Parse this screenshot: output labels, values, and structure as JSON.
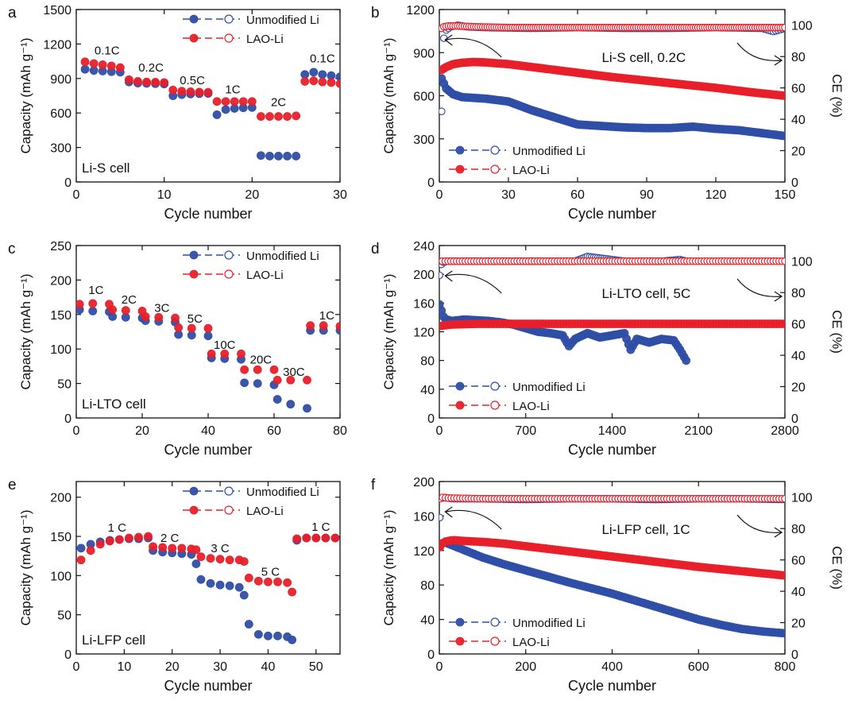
{
  "legend": {
    "unmodified": "Unmodified Li",
    "lao": "LAO-Li"
  },
  "colors": {
    "unmodified": "#2f4ea6",
    "lao": "#e8202a",
    "axis": "#111111"
  },
  "chart_data": [
    {
      "panel": "a",
      "type": "scatter",
      "cell_label": "Li-S cell",
      "xlabel": "Cycle number",
      "ylabel": "Capacity (mAh g⁻¹)",
      "xlim": [
        0,
        30
      ],
      "ylim": [
        0,
        1500
      ],
      "xticks": [
        0,
        10,
        20,
        30
      ],
      "yticks": [
        0,
        300,
        600,
        900,
        1200,
        1500
      ],
      "rate_labels": [
        {
          "text": "0.1C",
          "x": 3.5,
          "y": 1110
        },
        {
          "text": "0.2C",
          "x": 8.5,
          "y": 960
        },
        {
          "text": "0.5C",
          "x": 13.2,
          "y": 850
        },
        {
          "text": "1C",
          "x": 17.8,
          "y": 770
        },
        {
          "text": "2C",
          "x": 23,
          "y": 660
        },
        {
          "text": "0.1C",
          "x": 28,
          "y": 1040
        }
      ],
      "series": [
        {
          "name": "Unmodified Li",
          "x": [
            1,
            2,
            3,
            4,
            5,
            6,
            7,
            8,
            9,
            10,
            11,
            12,
            13,
            14,
            15,
            16,
            17,
            18,
            19,
            20,
            21,
            22,
            23,
            24,
            25,
            26,
            27,
            28,
            29,
            30
          ],
          "values": [
            980,
            970,
            965,
            960,
            955,
            870,
            860,
            858,
            855,
            852,
            750,
            760,
            765,
            768,
            770,
            585,
            630,
            640,
            645,
            648,
            230,
            225,
            225,
            225,
            225,
            935,
            955,
            935,
            925,
            915
          ]
        },
        {
          "name": "LAO-Li",
          "x": [
            1,
            2,
            3,
            4,
            5,
            6,
            7,
            8,
            9,
            10,
            11,
            12,
            13,
            14,
            15,
            16,
            17,
            18,
            19,
            20,
            21,
            22,
            23,
            24,
            25,
            26,
            27,
            28,
            29,
            30
          ],
          "values": [
            1045,
            1030,
            1020,
            1010,
            995,
            890,
            875,
            870,
            868,
            865,
            800,
            790,
            785,
            782,
            780,
            700,
            700,
            700,
            700,
            700,
            570,
            570,
            570,
            570,
            575,
            875,
            880,
            870,
            865,
            855
          ]
        }
      ]
    },
    {
      "panel": "b",
      "type": "scatter",
      "cell_label": "Li-S cell, 0.2C",
      "xlabel": "Cycle number",
      "ylabel": "Capacity (mAh g⁻¹)",
      "y2label": "CE (%)",
      "xlim": [
        0,
        150
      ],
      "ylim": [
        0,
        1200
      ],
      "y2lim": [
        0,
        110
      ],
      "xticks": [
        0,
        30,
        60,
        90,
        120,
        150
      ],
      "yticks": [
        0,
        300,
        600,
        900,
        1200
      ],
      "y2ticks": [
        0,
        20,
        40,
        60,
        80,
        100
      ],
      "series": [
        {
          "name": "Unmodified Li",
          "axis": "left",
          "x": [
            1,
            3,
            6,
            10,
            20,
            30,
            40,
            50,
            60,
            70,
            80,
            90,
            100,
            110,
            120,
            130,
            140,
            150
          ],
          "values": [
            720,
            650,
            610,
            590,
            580,
            560,
            500,
            450,
            400,
            390,
            380,
            375,
            375,
            385,
            370,
            360,
            340,
            320
          ]
        },
        {
          "name": "LAO-Li",
          "axis": "left",
          "x": [
            1,
            3,
            6,
            10,
            15,
            20,
            30,
            45,
            60,
            75,
            90,
            105,
            120,
            135,
            150
          ],
          "values": [
            780,
            800,
            820,
            830,
            835,
            832,
            820,
            790,
            760,
            730,
            705,
            680,
            655,
            625,
            600
          ]
        },
        {
          "name": "Unmodified Li CE",
          "axis": "right",
          "x": [
            1,
            2,
            3,
            5,
            8,
            12,
            20,
            40,
            60,
            80,
            100,
            120,
            140,
            145,
            150
          ],
          "values": [
            45,
            92,
            97,
            99,
            100,
            99,
            98.5,
            98,
            98.5,
            98,
            98,
            98.5,
            98,
            96,
            98
          ]
        },
        {
          "name": "LAO-Li CE",
          "axis": "right",
          "x": [
            1,
            2,
            4,
            8,
            15,
            30,
            60,
            90,
            120,
            150
          ],
          "values": [
            98,
            99,
            99.5,
            99.5,
            99,
            98.5,
            98.5,
            98.5,
            98.5,
            98.5
          ]
        }
      ]
    },
    {
      "panel": "c",
      "type": "scatter",
      "cell_label": "Li-LTO cell",
      "xlabel": "Cycle number",
      "ylabel": "Capacity (mAh g⁻¹)",
      "xlim": [
        0,
        80
      ],
      "ylim": [
        0,
        250
      ],
      "xticks": [
        0,
        20,
        40,
        60,
        80
      ],
      "yticks": [
        0,
        50,
        100,
        150,
        200,
        250
      ],
      "rate_labels": [
        {
          "text": "1C",
          "x": 6,
          "y": 180
        },
        {
          "text": "2C",
          "x": 16,
          "y": 166
        },
        {
          "text": "3C",
          "x": 26,
          "y": 154
        },
        {
          "text": "5C",
          "x": 36,
          "y": 138
        },
        {
          "text": "10C",
          "x": 45,
          "y": 100
        },
        {
          "text": "20C",
          "x": 56,
          "y": 79
        },
        {
          "text": "30C",
          "x": 66,
          "y": 61
        },
        {
          "text": "1C",
          "x": 76,
          "y": 143
        }
      ],
      "series": [
        {
          "name": "Unmodified Li",
          "x": [
            1,
            5,
            10,
            11,
            15,
            20,
            21,
            25,
            30,
            31,
            35,
            40,
            41,
            45,
            50,
            51,
            55,
            60,
            61,
            65,
            70,
            71,
            75,
            80
          ],
          "values": [
            157,
            155,
            154,
            147,
            146,
            145,
            141,
            140,
            139,
            121,
            120,
            119,
            87,
            86,
            85,
            51,
            50,
            48,
            27,
            20,
            14,
            127,
            127,
            127
          ]
        },
        {
          "name": "LAO-Li",
          "x": [
            1,
            5,
            10,
            11,
            15,
            20,
            21,
            25,
            30,
            31,
            35,
            40,
            41,
            45,
            50,
            51,
            55,
            60,
            61,
            65,
            70,
            71,
            75,
            80
          ],
          "values": [
            165,
            166,
            165,
            157,
            156,
            155,
            147,
            146,
            145,
            131,
            130,
            130,
            93,
            93,
            93,
            70,
            70,
            70,
            55,
            55,
            55,
            134,
            134,
            133
          ]
        }
      ]
    },
    {
      "panel": "d",
      "type": "scatter",
      "cell_label": "Li-LTO cell, 5C",
      "xlabel": "Cycle number",
      "ylabel": "Capacity (mAh g⁻¹)",
      "y2label": "CE (%)",
      "xlim": [
        0,
        2800
      ],
      "ylim": [
        0,
        240
      ],
      "y2lim": [
        0,
        110
      ],
      "xticks": [
        0,
        700,
        1400,
        2100,
        2800
      ],
      "yticks": [
        0,
        40,
        80,
        120,
        160,
        200,
        240
      ],
      "y2ticks": [
        0,
        20,
        40,
        60,
        80,
        100
      ],
      "series": [
        {
          "name": "Unmodified Li",
          "axis": "left",
          "x": [
            1,
            40,
            100,
            200,
            300,
            400,
            500,
            600,
            700,
            800,
            900,
            1000,
            1050,
            1100,
            1200,
            1300,
            1400,
            1500,
            1550,
            1600,
            1700,
            1800,
            1900,
            1950,
            2000
          ],
          "values": [
            158,
            138,
            135,
            137,
            136,
            135,
            133,
            130,
            125,
            120,
            118,
            115,
            100,
            110,
            118,
            112,
            115,
            118,
            95,
            110,
            105,
            110,
            108,
            95,
            80
          ]
        },
        {
          "name": "LAO-Li",
          "axis": "left",
          "x": [
            1,
            100,
            300,
            600,
            1000,
            1400,
            1800,
            2200,
            2600,
            2800
          ],
          "values": [
            128,
            130,
            131,
            131,
            131,
            131,
            131,
            131,
            131,
            131
          ]
        },
        {
          "name": "Unmodified Li CE",
          "axis": "right",
          "x": [
            1,
            20,
            60,
            200,
            500,
            800,
            1100,
            1200,
            1500,
            1800,
            1950,
            2000
          ],
          "values": [
            91,
            99,
            100,
            100,
            100,
            100,
            100,
            103,
            100,
            100,
            101,
            100
          ]
        },
        {
          "name": "LAO-Li CE",
          "axis": "right",
          "x": [
            1,
            200,
            500,
            1000,
            1500,
            2000,
            2500,
            2800
          ],
          "values": [
            100,
            100,
            100,
            100,
            100,
            100,
            100,
            100
          ]
        }
      ]
    },
    {
      "panel": "e",
      "type": "scatter",
      "cell_label": "Li-LFP cell",
      "xlabel": "Cycle number",
      "ylabel": "Capacity (mAh g⁻¹)",
      "xlim": [
        0,
        55
      ],
      "ylim": [
        0,
        220
      ],
      "xticks": [
        0,
        10,
        20,
        30,
        40,
        50
      ],
      "yticks": [
        0,
        50,
        100,
        150,
        200
      ],
      "rate_labels": [
        {
          "text": "1 C",
          "x": 8.5,
          "y": 156
        },
        {
          "text": "2 C",
          "x": 19.5,
          "y": 143
        },
        {
          "text": "3 C",
          "x": 30,
          "y": 130
        },
        {
          "text": "5 C",
          "x": 40.5,
          "y": 100
        },
        {
          "text": "1 C",
          "x": 51,
          "y": 157
        }
      ],
      "series": [
        {
          "name": "Unmodified Li",
          "x": [
            1,
            3,
            5,
            7,
            9,
            11,
            13,
            15,
            16,
            18,
            20,
            22,
            24,
            25,
            26,
            28,
            30,
            32,
            34,
            35,
            36,
            38,
            40,
            42,
            44,
            45,
            46,
            48,
            50,
            52,
            54
          ],
          "values": [
            135,
            140,
            143,
            145,
            146,
            147,
            147,
            148,
            132,
            130,
            129,
            128,
            127,
            115,
            95,
            90,
            88,
            87,
            85,
            75,
            38,
            25,
            23,
            23,
            22,
            18,
            145,
            148,
            148,
            148,
            148
          ]
        },
        {
          "name": "LAO-Li",
          "x": [
            1,
            3,
            5,
            7,
            9,
            11,
            13,
            15,
            16,
            18,
            20,
            22,
            24,
            25,
            26,
            28,
            30,
            32,
            34,
            35,
            36,
            38,
            40,
            42,
            44,
            45,
            46,
            48,
            50,
            52,
            54
          ],
          "values": [
            120,
            132,
            140,
            144,
            146,
            148,
            149,
            150,
            137,
            136,
            135,
            135,
            134,
            133,
            124,
            122,
            121,
            120,
            120,
            118,
            97,
            93,
            92,
            92,
            91,
            79,
            147,
            148,
            148,
            148,
            148
          ]
        }
      ]
    },
    {
      "panel": "f",
      "type": "scatter",
      "cell_label": "Li-LFP cell, 1C",
      "xlabel": "Cycle number",
      "ylabel": "Capacity (mAh g⁻¹)",
      "y2label": "CE (%)",
      "xlim": [
        0,
        800
      ],
      "ylim": [
        0,
        200
      ],
      "y2lim": [
        0,
        110
      ],
      "xticks": [
        0,
        200,
        400,
        600,
        800
      ],
      "yticks": [
        0,
        40,
        80,
        120,
        160,
        200
      ],
      "y2ticks": [
        0,
        20,
        40,
        60,
        80,
        100
      ],
      "series": [
        {
          "name": "Unmodified Li",
          "axis": "left",
          "x": [
            1,
            10,
            20,
            50,
            100,
            150,
            200,
            300,
            400,
            500,
            600,
            650,
            700,
            750,
            800
          ],
          "values": [
            124,
            130,
            128,
            122,
            112,
            104,
            97,
            83,
            70,
            55,
            40,
            34,
            29,
            26,
            24
          ]
        },
        {
          "name": "LAO-Li",
          "axis": "left",
          "x": [
            1,
            10,
            30,
            60,
            100,
            150,
            200,
            300,
            400,
            500,
            600,
            700,
            800
          ],
          "values": [
            124,
            130,
            132,
            131,
            130,
            128,
            125,
            119,
            113,
            107,
            101,
            96,
            91
          ]
        },
        {
          "name": "Unmodified Li CE",
          "axis": "right",
          "x": [
            1,
            5,
            10,
            30,
            100,
            200,
            300,
            400,
            500,
            600,
            700,
            800
          ],
          "values": [
            87,
            99,
            100,
            99,
            99,
            98.5,
            99,
            99,
            98.5,
            99,
            99,
            98.5
          ]
        },
        {
          "name": "LAO-Li CE",
          "axis": "right",
          "x": [
            1,
            5,
            20,
            100,
            200,
            300,
            400,
            500,
            600,
            700,
            800
          ],
          "values": [
            99,
            100,
            99.5,
            99,
            99,
            99,
            99,
            99,
            99,
            99,
            99
          ]
        }
      ]
    }
  ]
}
